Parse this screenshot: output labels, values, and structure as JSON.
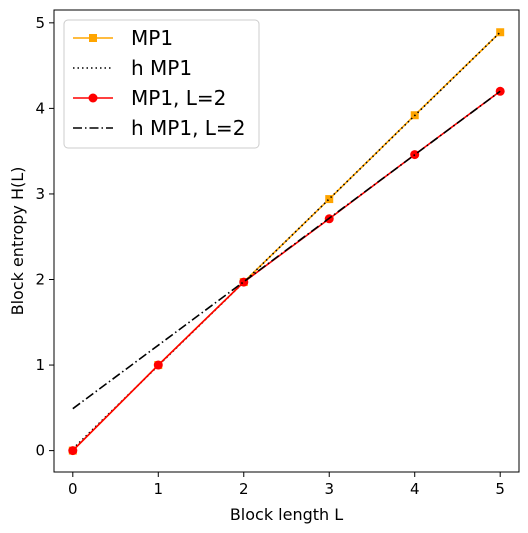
{
  "chart_data": {
    "type": "line",
    "title": "",
    "xlabel": "Block length L",
    "ylabel": "Block entropy H(L)",
    "xlim": [
      -0.22,
      5.22
    ],
    "ylim": [
      -0.25,
      5.15
    ],
    "x_ticks": [
      0,
      1,
      2,
      3,
      4,
      5
    ],
    "y_ticks": [
      0,
      1,
      2,
      3,
      4,
      5
    ],
    "grid": false,
    "legend_position": "top-left",
    "series": [
      {
        "name": "MP1",
        "color": "#FFA500",
        "style": "solid",
        "marker": "square",
        "x": [
          0,
          1,
          2,
          3,
          4,
          5
        ],
        "y": [
          0,
          1.0,
          1.97,
          2.94,
          3.92,
          4.89
        ]
      },
      {
        "name": "h MP1",
        "color": "#000000",
        "style": "dotted",
        "marker": "none",
        "x": [
          0,
          5
        ],
        "y": [
          0.02,
          4.89
        ]
      },
      {
        "name": "MP1, L=2",
        "color": "#FF0000",
        "style": "solid",
        "marker": "circle",
        "x": [
          0,
          1,
          2,
          3,
          4,
          5
        ],
        "y": [
          0,
          1.0,
          1.97,
          2.71,
          3.46,
          4.2
        ]
      },
      {
        "name": "h MP1, L=2",
        "color": "#000000",
        "style": "dashdot",
        "marker": "none",
        "x": [
          0,
          5
        ],
        "y": [
          0.49,
          4.2
        ]
      }
    ]
  }
}
